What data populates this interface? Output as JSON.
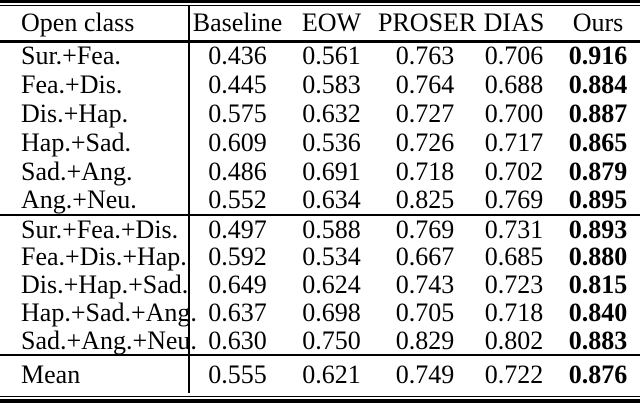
{
  "page": {
    "background": "#ffffff",
    "text_color": "#000000",
    "rule_color": "#000000"
  },
  "table": {
    "columns": [
      "Open class",
      "Baseline",
      "EOW",
      "PROSER",
      "DIAS",
      "Ours"
    ],
    "bold_column": "Ours",
    "sections": [
      {
        "rows": [
          {
            "label": "Sur.+Fea.",
            "values": [
              "0.436",
              "0.561",
              "0.763",
              "0.706",
              "0.916"
            ]
          },
          {
            "label": "Fea.+Dis.",
            "values": [
              "0.445",
              "0.583",
              "0.764",
              "0.688",
              "0.884"
            ]
          },
          {
            "label": "Dis.+Hap.",
            "values": [
              "0.575",
              "0.632",
              "0.727",
              "0.700",
              "0.887"
            ]
          },
          {
            "label": "Hap.+Sad.",
            "values": [
              "0.609",
              "0.536",
              "0.726",
              "0.717",
              "0.865"
            ]
          },
          {
            "label": "Sad.+Ang.",
            "values": [
              "0.486",
              "0.691",
              "0.718",
              "0.702",
              "0.879"
            ]
          },
          {
            "label": "Ang.+Neu.",
            "values": [
              "0.552",
              "0.634",
              "0.825",
              "0.769",
              "0.895"
            ]
          }
        ]
      },
      {
        "rows": [
          {
            "label": "Sur.+Fea.+Dis.",
            "values": [
              "0.497",
              "0.588",
              "0.769",
              "0.731",
              "0.893"
            ]
          },
          {
            "label": "Fea.+Dis.+Hap.",
            "values": [
              "0.592",
              "0.534",
              "0.667",
              "0.685",
              "0.880"
            ]
          },
          {
            "label": "Dis.+Hap.+Sad.",
            "values": [
              "0.649",
              "0.624",
              "0.743",
              "0.723",
              "0.815"
            ]
          },
          {
            "label": "Hap.+Sad.+Ang.",
            "values": [
              "0.637",
              "0.698",
              "0.705",
              "0.718",
              "0.840"
            ]
          },
          {
            "label": "Sad.+Ang.+Neu.",
            "values": [
              "0.630",
              "0.750",
              "0.829",
              "0.802",
              "0.883"
            ]
          }
        ]
      }
    ],
    "mean": {
      "label": "Mean",
      "values": [
        "0.555",
        "0.621",
        "0.749",
        "0.722",
        "0.876"
      ]
    }
  }
}
